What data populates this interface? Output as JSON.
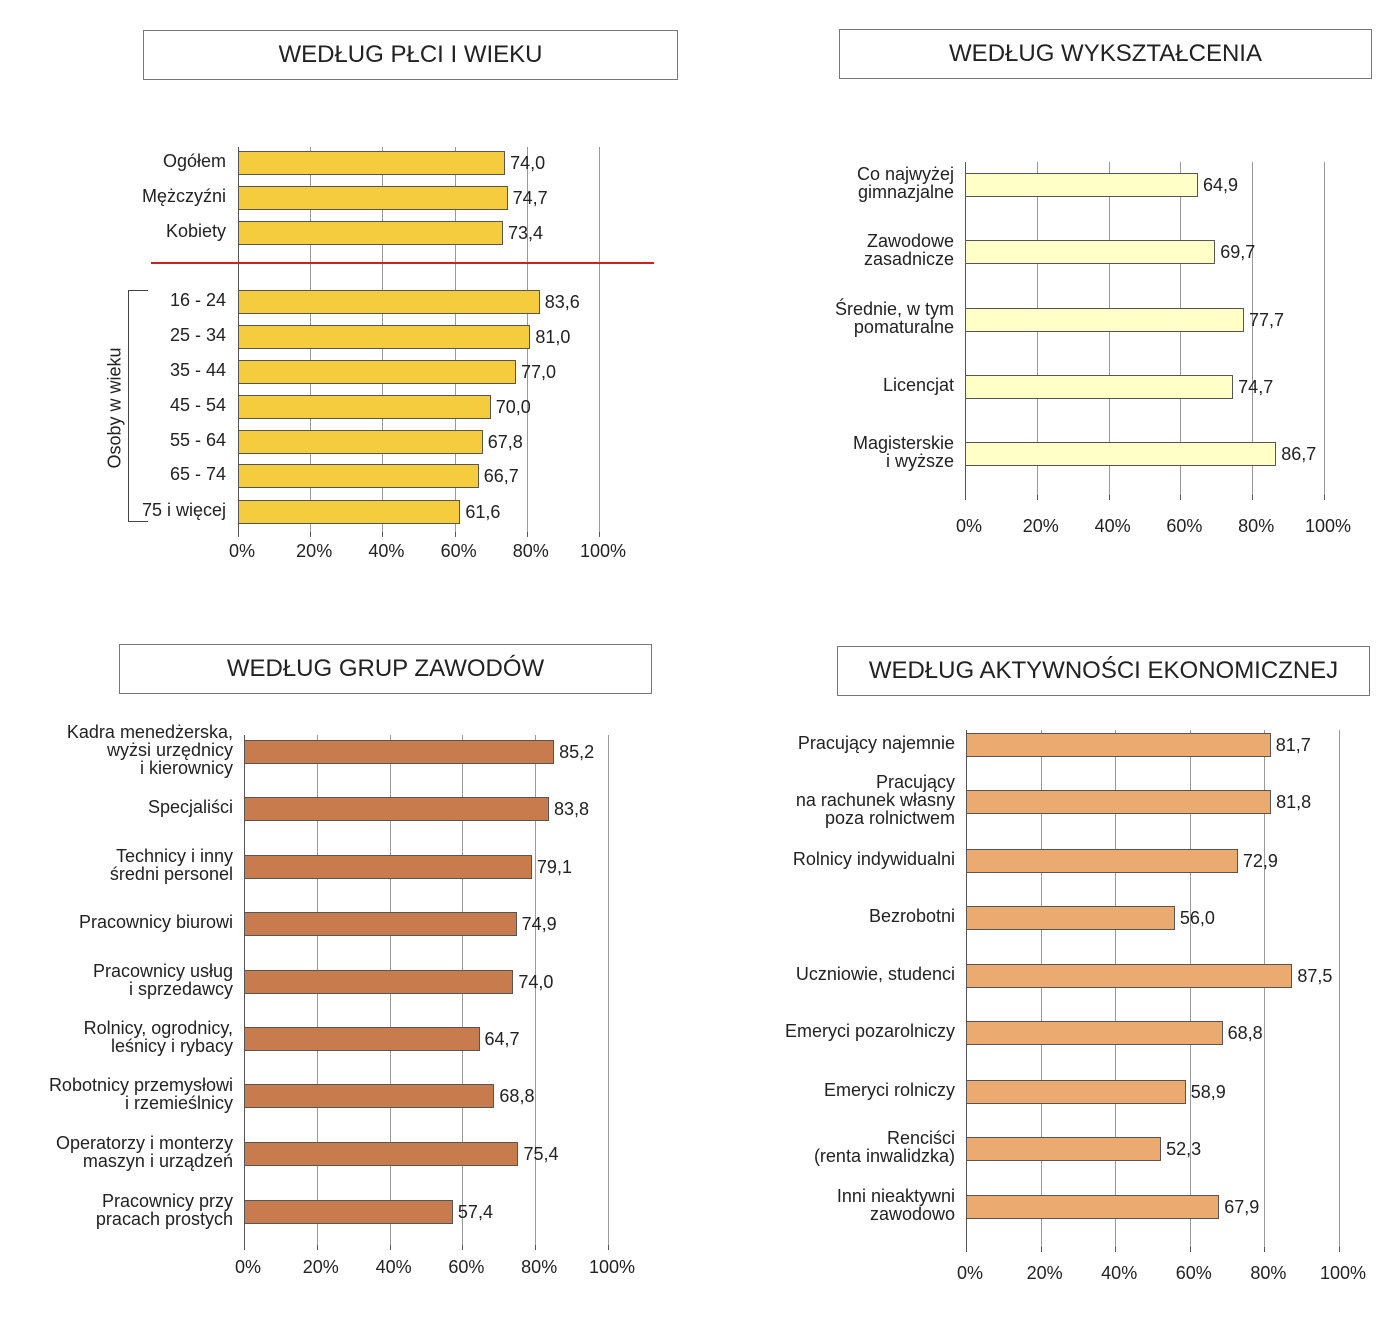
{
  "chart_data": [
    {
      "type": "bar",
      "orientation": "horizontal",
      "title": "WEDŁUG PŁCI I WIEKU",
      "color": "#F5CC3E",
      "categories": [
        "Ogółem",
        "Mężczyźni",
        "Kobiety",
        "16 - 24",
        "25 - 34",
        "35 - 44",
        "45 - 54",
        "55 - 64",
        "65 - 74",
        "75 i więcej"
      ],
      "values": [
        74.0,
        74.7,
        73.4,
        83.6,
        81.0,
        77.0,
        70.0,
        67.8,
        66.7,
        61.6
      ],
      "value_labels": [
        "74,0",
        "74,7",
        "73,4",
        "83,6",
        "81,0",
        "77,0",
        "70,0",
        "67,8",
        "66,7",
        "61,6"
      ],
      "group_label": "Osoby w wieku",
      "separator_color": "#CC2222",
      "xlim": [
        0,
        100
      ],
      "xticks": [
        "0%",
        "20%",
        "40%",
        "60%",
        "80%",
        "100%"
      ],
      "grid": true
    },
    {
      "type": "bar",
      "orientation": "horizontal",
      "title": "WEDŁUG WYKSZTAŁCENIA",
      "color": "#FFFFC8",
      "categories": [
        "Co najwyżej\ngimnazjalne",
        "Zawodowe\nzasadnicze",
        "Średnie, w tym\npomaturalne",
        "Licencjat",
        "Magisterskie\ni wyższe"
      ],
      "values": [
        64.9,
        69.7,
        77.7,
        74.7,
        86.7
      ],
      "value_labels": [
        "64,9",
        "69,7",
        "77,7",
        "74,7",
        "86,7"
      ],
      "xlim": [
        0,
        100
      ],
      "xticks": [
        "0%",
        "20%",
        "40%",
        "60%",
        "80%",
        "100%"
      ],
      "grid": true
    },
    {
      "type": "bar",
      "orientation": "horizontal",
      "title": "WEDŁUG GRUP ZAWODÓW",
      "color": "#C87B4C",
      "categories": [
        "Kadra menedżerska,\nwyżsi urzędnicy\ni kierownicy",
        "Specjaliści",
        "Technicy i inny\nśredni personel",
        "Pracownicy biurowi",
        "Pracownicy usług\ni sprzedawcy",
        "Rolnicy, ogrodnicy,\nleśnicy i rybacy",
        "Robotnicy przemysłowi\ni rzemieślnicy",
        "Operatorzy i monterzy\nmaszyn i urządzeń",
        "Pracownicy przy\npracach prostych"
      ],
      "values": [
        85.2,
        83.8,
        79.1,
        74.9,
        74.0,
        64.7,
        68.8,
        75.4,
        57.4
      ],
      "value_labels": [
        "85,2",
        "83,8",
        "79,1",
        "74,9",
        "74,0",
        "64,7",
        "68,8",
        "75,4",
        "57,4"
      ],
      "xlim": [
        0,
        100
      ],
      "xticks": [
        "0%",
        "20%",
        "40%",
        "60%",
        "80%",
        "100%"
      ],
      "grid": true
    },
    {
      "type": "bar",
      "orientation": "horizontal",
      "title": "WEDŁUG AKTYWNOŚCI EKONOMICZNEJ",
      "color": "#EBAA70",
      "categories": [
        "Pracujący najemnie",
        "Pracujący\nna rachunek własny\npoza rolnictwem",
        "Rolnicy indywidualni",
        "Bezrobotni",
        "Uczniowie, studenci",
        "Emeryci pozarolniczy",
        "Emeryci rolniczy",
        "Renciści\n(renta inwalidzka)",
        "Inni nieaktywni\nzawodowo"
      ],
      "values": [
        81.7,
        81.8,
        72.9,
        56.0,
        87.5,
        68.8,
        58.9,
        52.3,
        67.9
      ],
      "value_labels": [
        "81,7",
        "81,8",
        "72,9",
        "56,0",
        "87,5",
        "68,8",
        "58,9",
        "52,3",
        "67,9"
      ],
      "xlim": [
        0,
        100
      ],
      "xticks": [
        "0%",
        "20%",
        "40%",
        "60%",
        "80%",
        "100%"
      ],
      "grid": true
    }
  ]
}
